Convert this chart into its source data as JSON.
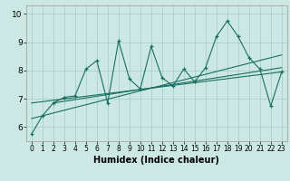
{
  "title": "",
  "xlabel": "Humidex (Indice chaleur)",
  "ylabel": "",
  "bg_color": "#cce8e4",
  "line_color": "#1a6e62",
  "grid_color": "#aad0cc",
  "xlim": [
    -0.5,
    23.5
  ],
  "ylim": [
    5.5,
    10.3
  ],
  "yticks": [
    6,
    7,
    8,
    9,
    10
  ],
  "xticks": [
    0,
    1,
    2,
    3,
    4,
    5,
    6,
    7,
    8,
    9,
    10,
    11,
    12,
    13,
    14,
    15,
    16,
    17,
    18,
    19,
    20,
    21,
    22,
    23
  ],
  "series1_x": [
    0,
    1,
    2,
    3,
    4,
    5,
    6,
    7,
    8,
    9,
    10,
    11,
    12,
    13,
    14,
    15,
    16,
    17,
    18,
    19,
    20,
    21,
    22,
    23
  ],
  "series1_y": [
    5.75,
    6.4,
    6.85,
    7.05,
    7.1,
    8.05,
    8.35,
    6.85,
    9.05,
    7.7,
    7.35,
    8.85,
    7.75,
    7.45,
    8.05,
    7.6,
    8.1,
    9.2,
    9.75,
    9.2,
    8.45,
    8.05,
    6.75,
    7.95
  ],
  "trend1_x": [
    0,
    23
  ],
  "trend1_y": [
    6.3,
    8.55
  ],
  "trend2_x": [
    0,
    23
  ],
  "trend2_y": [
    6.85,
    7.95
  ],
  "trend3_x": [
    2,
    23
  ],
  "trend3_y": [
    6.85,
    8.1
  ],
  "marker": "+",
  "xlabel_fontsize": 7,
  "tick_fontsize_x": 5.5,
  "tick_fontsize_y": 6.5
}
